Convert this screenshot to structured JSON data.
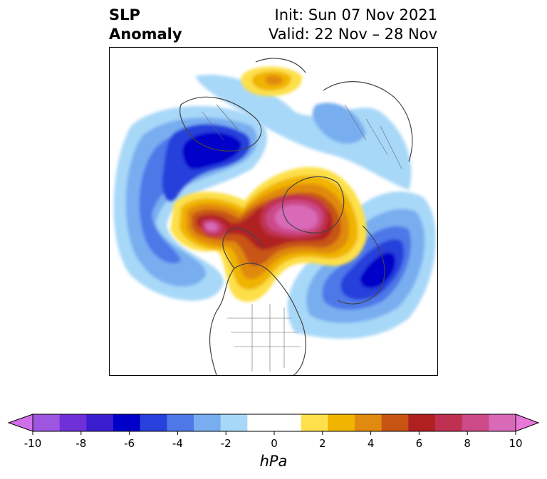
{
  "header": {
    "variable": "SLP",
    "type": "Anomaly",
    "init": "Init: Sun 07 Nov 2021",
    "valid": "Valid: 22 Nov – 28 Nov"
  },
  "colorbar": {
    "units": "hPa",
    "min": -10,
    "max": 10,
    "step": 1,
    "tick_labels": [
      "-10",
      "-8",
      "-6",
      "-4",
      "-2",
      "0",
      "2",
      "4",
      "6",
      "8",
      "10"
    ],
    "colors": [
      "#9e55e0",
      "#7030d8",
      "#3a1ed0",
      "#0000c8",
      "#2840dc",
      "#4e78e8",
      "#78aef0",
      "#a8d8f8",
      "#ffffff",
      "#ffffff",
      "#fde04a",
      "#f0b400",
      "#e08a10",
      "#c85414",
      "#b02020",
      "#c03050",
      "#cc4a88",
      "#d86ab8"
    ],
    "extend_low_color": "#d070e8",
    "extend_high_color": "#e878d8"
  },
  "map": {
    "projection": "north-polar-stereographic",
    "features": [
      "coastlines",
      "country-borders",
      "us-state-borders"
    ]
  }
}
